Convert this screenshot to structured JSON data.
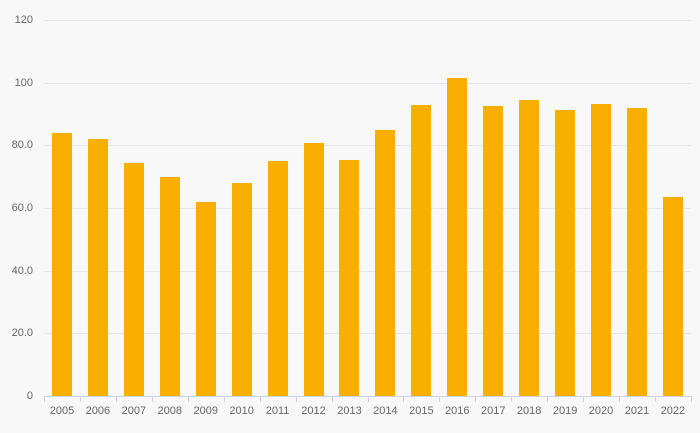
{
  "chart_data": {
    "type": "bar",
    "title": "",
    "xlabel": "",
    "ylabel": "",
    "categories": [
      "2005",
      "2006",
      "2007",
      "2008",
      "2009",
      "2010",
      "2011",
      "2012",
      "2013",
      "2014",
      "2015",
      "2016",
      "2017",
      "2018",
      "2019",
      "2020",
      "2021",
      "2022"
    ],
    "values": [
      84,
      82,
      74.5,
      70,
      62,
      68.1,
      74.9,
      80.8,
      75.4,
      84.8,
      93,
      101.4,
      92.6,
      94.5,
      91.2,
      93.3,
      91.8,
      63.4
    ],
    "ylim": [
      0,
      120
    ],
    "ytick_labels": [
      "120",
      "100",
      "80.0",
      "60.0",
      "40.0",
      "20.0",
      "0"
    ],
    "ytick_values": [
      120,
      100,
      80,
      60,
      40,
      20,
      0
    ],
    "grid": true,
    "legend": false,
    "colors": {
      "bar": "#f9af00",
      "background": "#f8f8f8",
      "gridline": "#e7e7e7",
      "axis_line": "#c9d3ea",
      "label_text": "#65676b"
    }
  }
}
